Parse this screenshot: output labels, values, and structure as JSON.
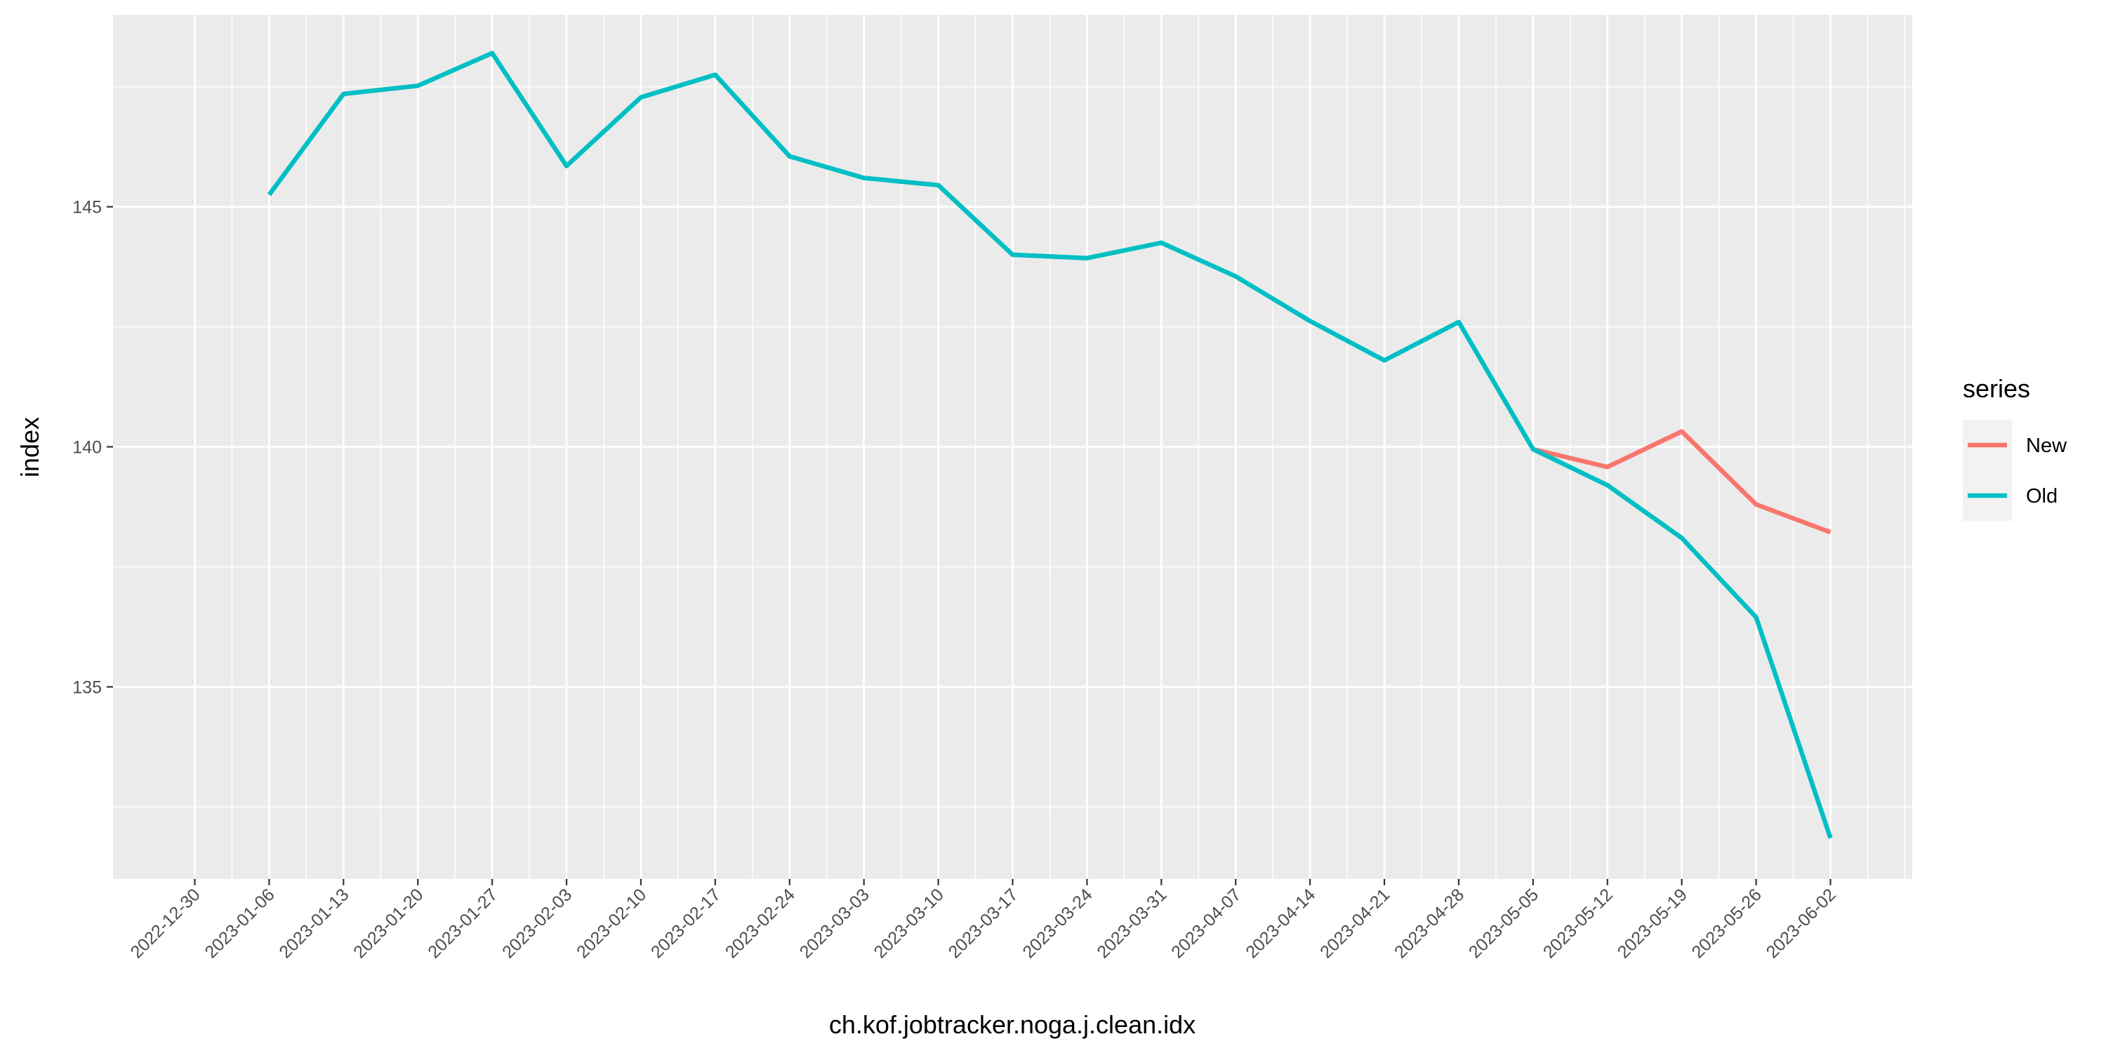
{
  "chart_data": {
    "type": "line",
    "xlabel": "ch.kof.jobtracker.noga.j.clean.idx",
    "ylabel": "index",
    "x_ticks": [
      "2022-12-30",
      "2023-01-06",
      "2023-01-13",
      "2023-01-20",
      "2023-01-27",
      "2023-02-03",
      "2023-02-10",
      "2023-02-17",
      "2023-02-24",
      "2023-03-03",
      "2023-03-10",
      "2023-03-17",
      "2023-03-24",
      "2023-03-31",
      "2023-04-07",
      "2023-04-14",
      "2023-04-21",
      "2023-04-28",
      "2023-05-05",
      "2023-05-12",
      "2023-05-19",
      "2023-05-26",
      "2023-06-02"
    ],
    "xlim": [
      "2022-12-30",
      "2023-06-02"
    ],
    "ylim": [
      131.0,
      149.0
    ],
    "y_ticks": [
      135,
      140,
      145
    ],
    "grid": true,
    "legend": {
      "title": "series",
      "position": "right"
    },
    "series": [
      {
        "name": "New",
        "color": "#F8766D",
        "x": [
          "2023-05-05",
          "2023-05-12",
          "2023-05-19",
          "2023-05-26",
          "2023-06-02"
        ],
        "values": [
          139.95,
          139.58,
          140.32,
          138.8,
          138.22
        ]
      },
      {
        "name": "Old",
        "color": "#00BFC4",
        "x": [
          "2023-01-06",
          "2023-01-13",
          "2023-01-20",
          "2023-01-27",
          "2023-02-03",
          "2023-02-10",
          "2023-02-17",
          "2023-02-24",
          "2023-03-03",
          "2023-03-10",
          "2023-03-17",
          "2023-03-24",
          "2023-03-31",
          "2023-04-07",
          "2023-04-14",
          "2023-04-21",
          "2023-04-28",
          "2023-05-05",
          "2023-05-12",
          "2023-05-19",
          "2023-05-26",
          "2023-06-02"
        ],
        "values": [
          145.25,
          147.35,
          147.52,
          148.2,
          145.85,
          147.28,
          147.75,
          146.05,
          145.6,
          145.45,
          144.0,
          143.93,
          144.25,
          143.55,
          142.62,
          141.8,
          142.6,
          139.95,
          139.2,
          138.1,
          136.45,
          131.85
        ]
      }
    ]
  }
}
